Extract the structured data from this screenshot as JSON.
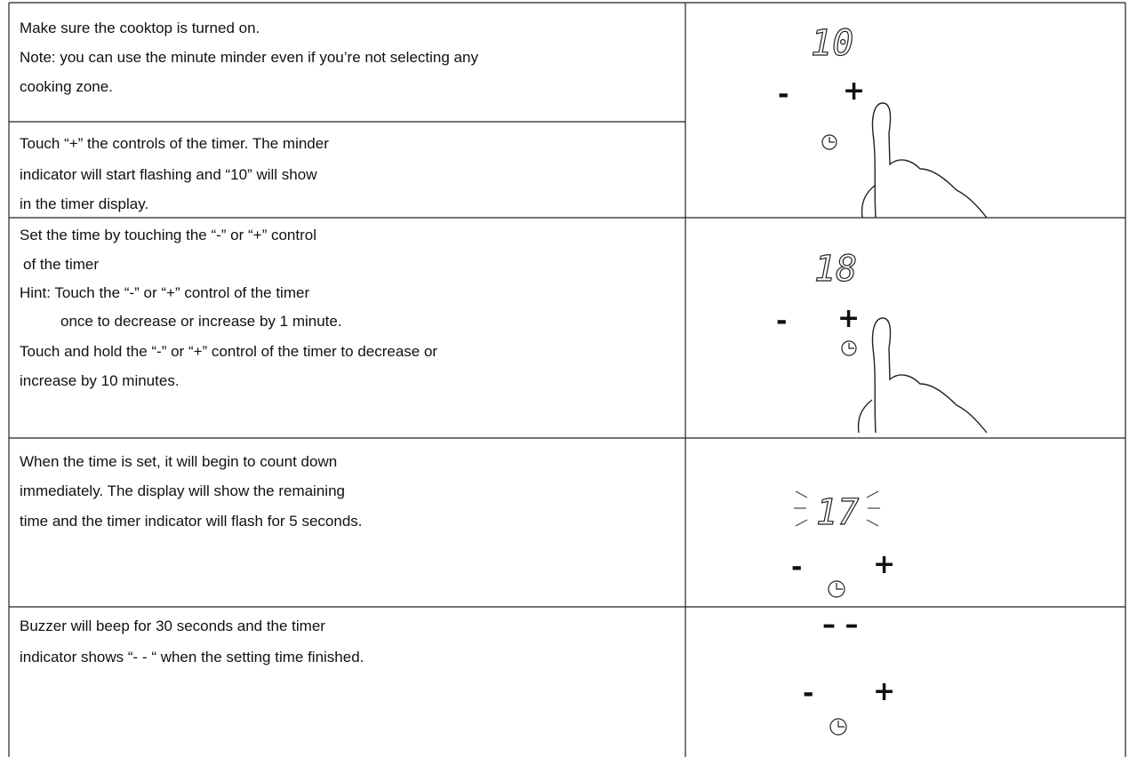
{
  "steps": [
    {
      "lines": [
        "Make sure the cooktop is turned on.",
        "Note: you can use the minute minder even if you’re not selecting any",
        "cooking zone."
      ]
    },
    {
      "lines": [
        "Touch “+” the controls of the timer. The minder",
        "indicator will start flashing and “10” will show",
        "in the timer display."
      ]
    },
    {
      "lines": [
        "Set the time by touching the “-” or “+” control",
        "of the timer",
        "Hint: Touch the “-” or “+” control of the timer",
        "once to decrease or increase by 1 minute.",
        "Touch and hold the “-” or “+” control of the timer to decrease or",
        "increase by 10 minutes."
      ]
    },
    {
      "lines": [
        "When the time is set, it will begin to count down",
        "immediately. The display will show the remaining",
        "time and the timer indicator will flash for 5 seconds."
      ]
    },
    {
      "lines": [
        "Buzzer will beep for 30 seconds and the timer",
        "indicator shows “- - “ when the setting time finished."
      ]
    }
  ],
  "displays": [
    {
      "digits": "10",
      "minus": "-",
      "plus": "+"
    },
    {
      "digits": "18",
      "minus": "-",
      "plus": "+"
    },
    {
      "digits": "17",
      "minus": "-",
      "plus": "+"
    },
    {
      "digits": "– –",
      "minus": "-",
      "plus": "+"
    }
  ]
}
